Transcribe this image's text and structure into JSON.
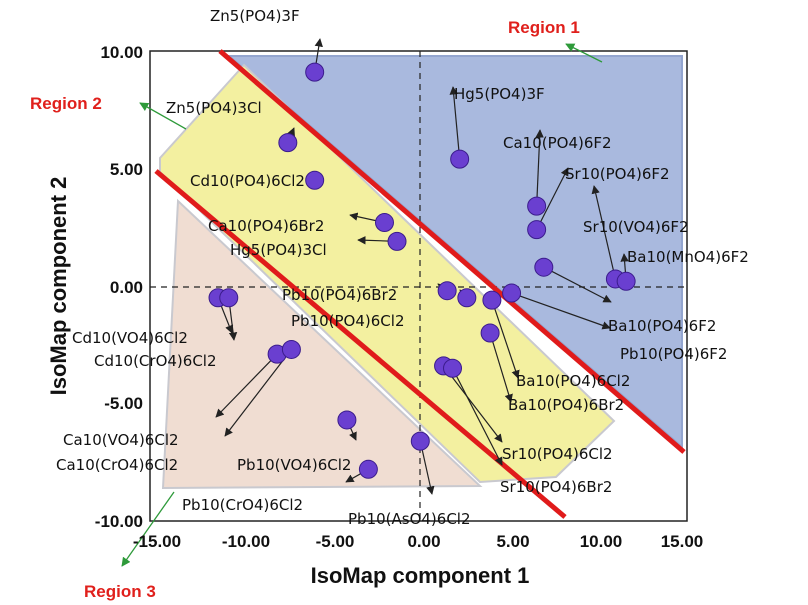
{
  "chart_data": {
    "type": "scatter",
    "xlabel": "IsoMap component 1",
    "ylabel": "IsoMap component 2",
    "xlim": [
      -15,
      15
    ],
    "ylim": [
      -10,
      10
    ],
    "xticks": [
      "-15.00",
      "-10.00",
      "-5.00",
      "0.00",
      "5.00",
      "10.00",
      "15.00"
    ],
    "yticks": [
      "-10.00",
      "-5.00",
      "0.00",
      "5.00",
      "10.00"
    ],
    "zero_lines": true,
    "regions": [
      {
        "name": "Region 1",
        "color": "#a9b9de"
      },
      {
        "name": "Region 2",
        "color": "#f3f0a0"
      },
      {
        "name": "Region 3",
        "color": "#f0ddd2"
      }
    ],
    "boundary_color": "#e01b1b",
    "point_color": "#6a3fd0",
    "points": [
      {
        "label": "Zn5(PO4)3F",
        "x": -5.8,
        "y": 9.1
      },
      {
        "label": "Zn5(PO4)3Cl",
        "x": -7.3,
        "y": 6.1
      },
      {
        "label": "Cd10(PO4)6Cl2",
        "x": -5.8,
        "y": 4.5
      },
      {
        "label": "Ca10(PO4)6Br2",
        "x": -1.9,
        "y": 2.7
      },
      {
        "label": "Hg5(PO4)3Cl",
        "x": -1.2,
        "y": 1.9
      },
      {
        "label": "Hg5(PO4)3F",
        "x": 2.3,
        "y": 5.4
      },
      {
        "label": "Ca10(PO4)6F2",
        "x": 6.6,
        "y": 3.4
      },
      {
        "label": "Sr10(PO4)6F2",
        "x": 6.6,
        "y": 2.4
      },
      {
        "label": "Sr10(VO4)6F2",
        "x": 11.0,
        "y": 0.3
      },
      {
        "label": "Ba10(MnO4)6F2",
        "x": 11.6,
        "y": 0.2
      },
      {
        "label": "Ba10(PO4)6F2",
        "x": 7.0,
        "y": 0.8
      },
      {
        "label": "Pb10(PO4)6F2",
        "x": 5.2,
        "y": -0.3
      },
      {
        "label": "Pb10(PO4)6Br2",
        "x": 1.6,
        "y": -0.2
      },
      {
        "label": "Pb10(PO4)6Cl2",
        "x": 2.7,
        "y": -0.5
      },
      {
        "label": "Ba10(PO4)6Cl2",
        "x": 4.1,
        "y": -0.6
      },
      {
        "label": "Ba10(PO4)6Br2",
        "x": 4.0,
        "y": -2.0
      },
      {
        "label": "Sr10(PO4)6Cl2",
        "x": 1.4,
        "y": -3.4
      },
      {
        "label": "Sr10(PO4)6Br2",
        "x": 1.9,
        "y": -3.5
      },
      {
        "label": "Cd10(VO4)6Cl2",
        "x": -11.2,
        "y": -0.5
      },
      {
        "label": "Cd10(CrO4)6Cl2",
        "x": -10.6,
        "y": -0.5
      },
      {
        "label": "Ca10(VO4)6Cl2",
        "x": -7.9,
        "y": -2.9
      },
      {
        "label": "Ca10(CrO4)6Cl2",
        "x": -7.1,
        "y": -2.7
      },
      {
        "label": "Pb10(VO4)6Cl2",
        "x": -4.0,
        "y": -5.7
      },
      {
        "label": "Pb10(CrO4)6Cl2",
        "x": -2.8,
        "y": -7.8
      },
      {
        "label": "Pb10(AsO4)6Cl2",
        "x": 0.1,
        "y": -6.6
      }
    ]
  }
}
